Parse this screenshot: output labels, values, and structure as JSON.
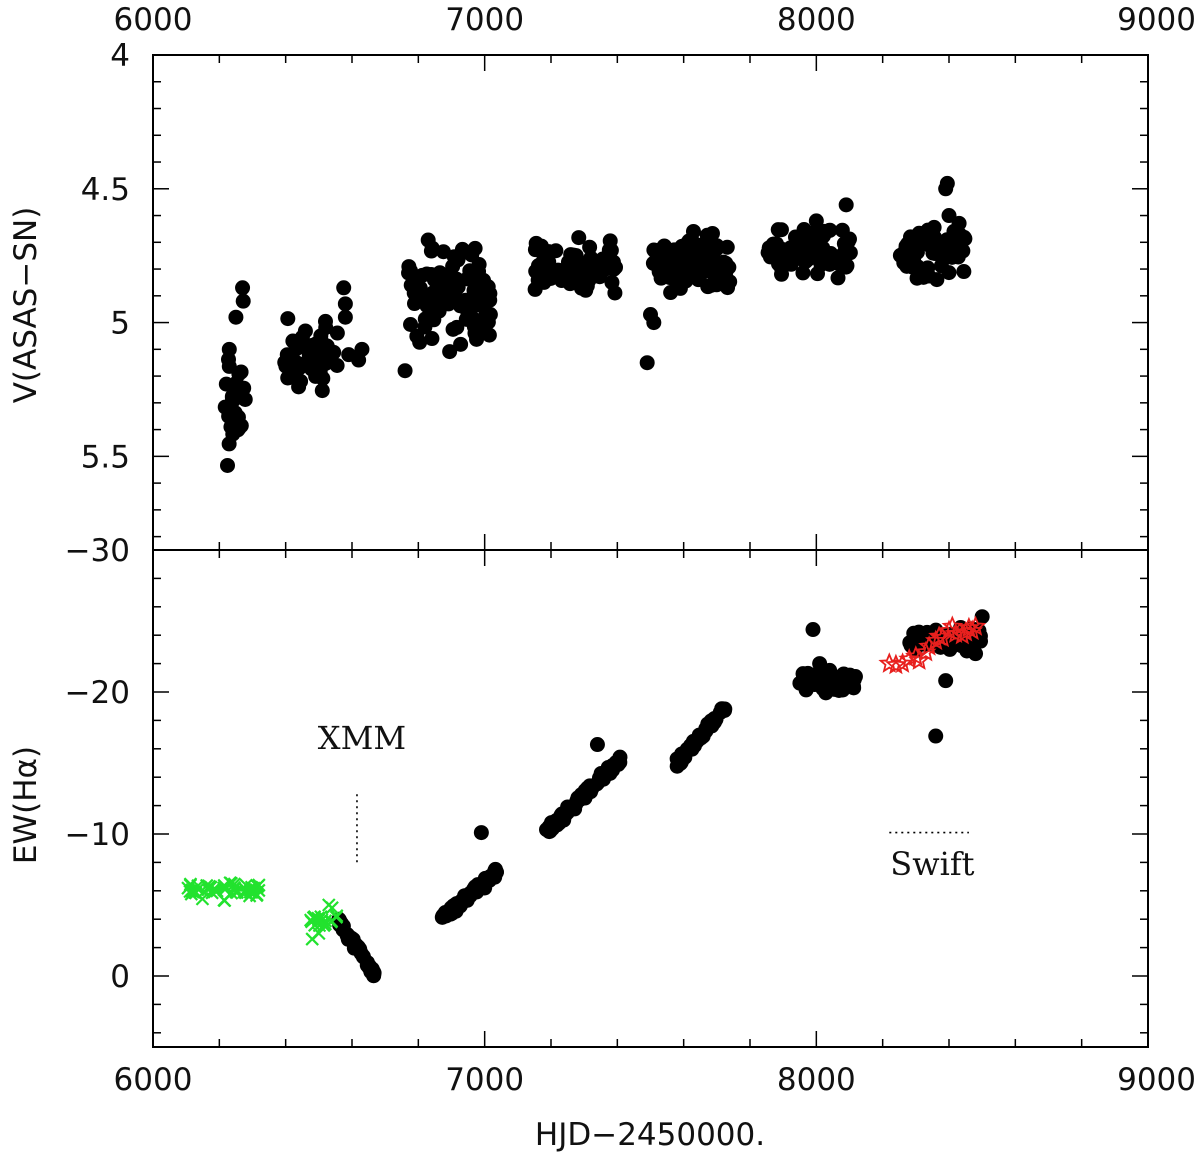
{
  "figure": {
    "background": "#ffffff"
  },
  "chart_data": [
    {
      "panel": "top",
      "type": "scatter",
      "title": "",
      "xlabel": "",
      "ylabel": "V(ASAS−SN)",
      "xlim": [
        6000,
        9000
      ],
      "ylim": [
        5.85,
        4.0
      ],
      "y_reversed": true,
      "x_ticks_major": [
        "6000",
        "7000",
        "8000",
        "9000"
      ],
      "y_ticks_major": [
        "4",
        "4.5",
        "5",
        "5.5"
      ],
      "grid": false,
      "legend": "none",
      "series": [
        {
          "marker": "filled-circle",
          "color": "#000000",
          "clusters": [
            {
              "x_range": [
                6210,
                6280
              ],
              "y_center": 5.3,
              "y_spread": 0.35,
              "n": 22
            },
            {
              "x_range": [
                6390,
                6560
              ],
              "y_center": 5.12,
              "y_spread": 0.18,
              "n": 55
            },
            {
              "x_range": [
                6770,
                7020
              ],
              "y_center": 4.9,
              "y_spread": 0.26,
              "n": 110
            },
            {
              "x_range": [
                7150,
                7400
              ],
              "y_center": 4.8,
              "y_spread": 0.14,
              "n": 80
            },
            {
              "x_range": [
                7500,
                7740
              ],
              "y_center": 4.78,
              "y_spread": 0.14,
              "n": 110
            },
            {
              "x_range": [
                7850,
                8110
              ],
              "y_center": 4.74,
              "y_spread": 0.12,
              "n": 75
            },
            {
              "x_range": [
                8250,
                8450
              ],
              "y_center": 4.73,
              "y_spread": 0.14,
              "n": 65
            }
          ],
          "points": [
            [
              6270,
              4.87
            ],
            [
              6272,
              4.92
            ],
            [
              6250,
              4.98
            ],
            [
              6230,
              5.1
            ],
            [
              6235,
              5.39
            ],
            [
              6228,
              5.35
            ],
            [
              6580,
              4.98
            ],
            [
              6590,
              5.12
            ],
            [
              6620,
              5.14
            ],
            [
              6630,
              5.1
            ],
            [
              6580,
              4.93
            ],
            [
              6575,
              4.87
            ],
            [
              6760,
              5.18
            ],
            [
              7490,
              5.15
            ],
            [
              7500,
              4.97
            ],
            [
              7510,
              5.0
            ],
            [
              8000,
              4.62
            ],
            [
              8090,
              4.56
            ],
            [
              8390,
              4.5
            ],
            [
              8395,
              4.48
            ],
            [
              8400,
              4.6
            ]
          ]
        }
      ]
    },
    {
      "panel": "bottom",
      "type": "scatter",
      "title": "",
      "xlabel": "HJD−2450000.",
      "ylabel": "EW(Hα)",
      "xlim": [
        6000,
        9000
      ],
      "ylim": [
        5,
        -30
      ],
      "y_reversed": true,
      "x_ticks_major": [
        "6000",
        "7000",
        "8000",
        "9000"
      ],
      "y_ticks_major": [
        "0",
        "−10",
        "−20",
        "−30"
      ],
      "grid": false,
      "legend": "none",
      "annotations": [
        {
          "text": "XMM",
          "x": 6630,
          "y": -16,
          "marker_line": {
            "x": 6615,
            "y_range": [
              -12.8,
              -8.0
            ],
            "style": "dotted"
          }
        },
        {
          "text": "Swift",
          "x": 8350,
          "y": -7.1,
          "marker_line": {
            "y": -10.1,
            "x_range": [
              8220,
              8460
            ],
            "style": "dotted"
          }
        }
      ],
      "series": [
        {
          "marker": "filled-circle",
          "color": "#000000",
          "linear_segments": [
            {
              "x_range": [
                6560,
                6670
              ],
              "y_range": [
                -4.0,
                0.0
              ],
              "n": 40
            },
            {
              "x_range": [
                6870,
                7040
              ],
              "y_range": [
                -4.0,
                -7.5
              ],
              "n": 60
            },
            {
              "x_range": [
                7180,
                7420
              ],
              "y_range": [
                -10.0,
                -15.5
              ],
              "n": 70
            },
            {
              "x_range": [
                7580,
                7730
              ],
              "y_range": [
                -15.0,
                -19.0
              ],
              "n": 45
            }
          ],
          "clusters": [
            {
              "x_range": [
                7950,
                8120
              ],
              "y_center": -20.8,
              "y_spread": 1.0,
              "n": 60
            },
            {
              "x_range": [
                8280,
                8500
              ],
              "y_center": -23.8,
              "y_spread": 1.2,
              "n": 70
            }
          ],
          "points": [
            [
              6990,
              -10.1
            ],
            [
              7000,
              -6.2
            ],
            [
              7340,
              -16.3
            ],
            [
              7990,
              -24.4
            ],
            [
              8010,
              -22.0
            ],
            [
              8360,
              -16.9
            ],
            [
              8390,
              -20.8
            ],
            [
              8500,
              -25.3
            ],
            [
              8480,
              -22.7
            ]
          ]
        },
        {
          "marker": "cross",
          "color": "#22e22e",
          "clusters": [
            {
              "x_range": [
                6100,
                6320
              ],
              "y_center": -6.1,
              "y_spread": 0.9,
              "n": 55
            },
            {
              "x_range": [
                6470,
                6560
              ],
              "y_center": -3.9,
              "y_spread": 0.7,
              "n": 18
            }
          ],
          "points": [
            [
              6480,
              -2.6
            ],
            [
              6500,
              -3.0
            ],
            [
              6530,
              -5.0
            ],
            [
              6540,
              -4.8
            ]
          ]
        },
        {
          "marker": "open-star",
          "color": "#e8201e",
          "points": [
            [
              8220,
              -22.0
            ],
            [
              8240,
              -21.9
            ],
            [
              8260,
              -22.0
            ],
            [
              8280,
              -22.3
            ],
            [
              8300,
              -22.5
            ],
            [
              8310,
              -22.2
            ],
            [
              8330,
              -22.8
            ],
            [
              8340,
              -23.2
            ],
            [
              8360,
              -23.6
            ],
            [
              8370,
              -23.9
            ],
            [
              8380,
              -23.8
            ],
            [
              8400,
              -24.3
            ],
            [
              8410,
              -24.6
            ],
            [
              8420,
              -24.1
            ],
            [
              8440,
              -24.0
            ],
            [
              8450,
              -24.2
            ],
            [
              8460,
              -24.5
            ],
            [
              8470,
              -24.3
            ],
            [
              8480,
              -24.6
            ]
          ]
        }
      ]
    }
  ]
}
